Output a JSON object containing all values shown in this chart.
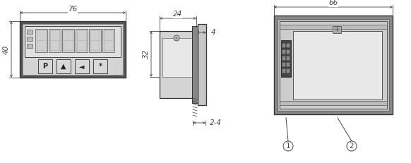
{
  "bg_color": "#ffffff",
  "lc": "#333333",
  "dc": "#444444",
  "dim_76": "76",
  "dim_40": "40",
  "dim_24": "24",
  "dim_4": "4",
  "dim_32": "32",
  "dim_24b": "2-4",
  "dim_66": "66",
  "label_1": "1",
  "label_2": "2",
  "front_outer_fc": "#666666",
  "front_inner_fc": "#d8d8d8",
  "front_disp_fc": "#cccccc",
  "front_btn_fc": "#dddddd",
  "side_body_fc": "#d4d4d4",
  "side_flange_fc": "#c8c8c8",
  "rear_outer_fc": "#888888",
  "rear_mid_fc": "#c0c0c0",
  "rear_inner_fc": "#d8d8d8",
  "rear_board_fc": "#e4e4e4",
  "rear_conn_fc": "#555555",
  "rear_screw_fc": "#aaaaaa"
}
